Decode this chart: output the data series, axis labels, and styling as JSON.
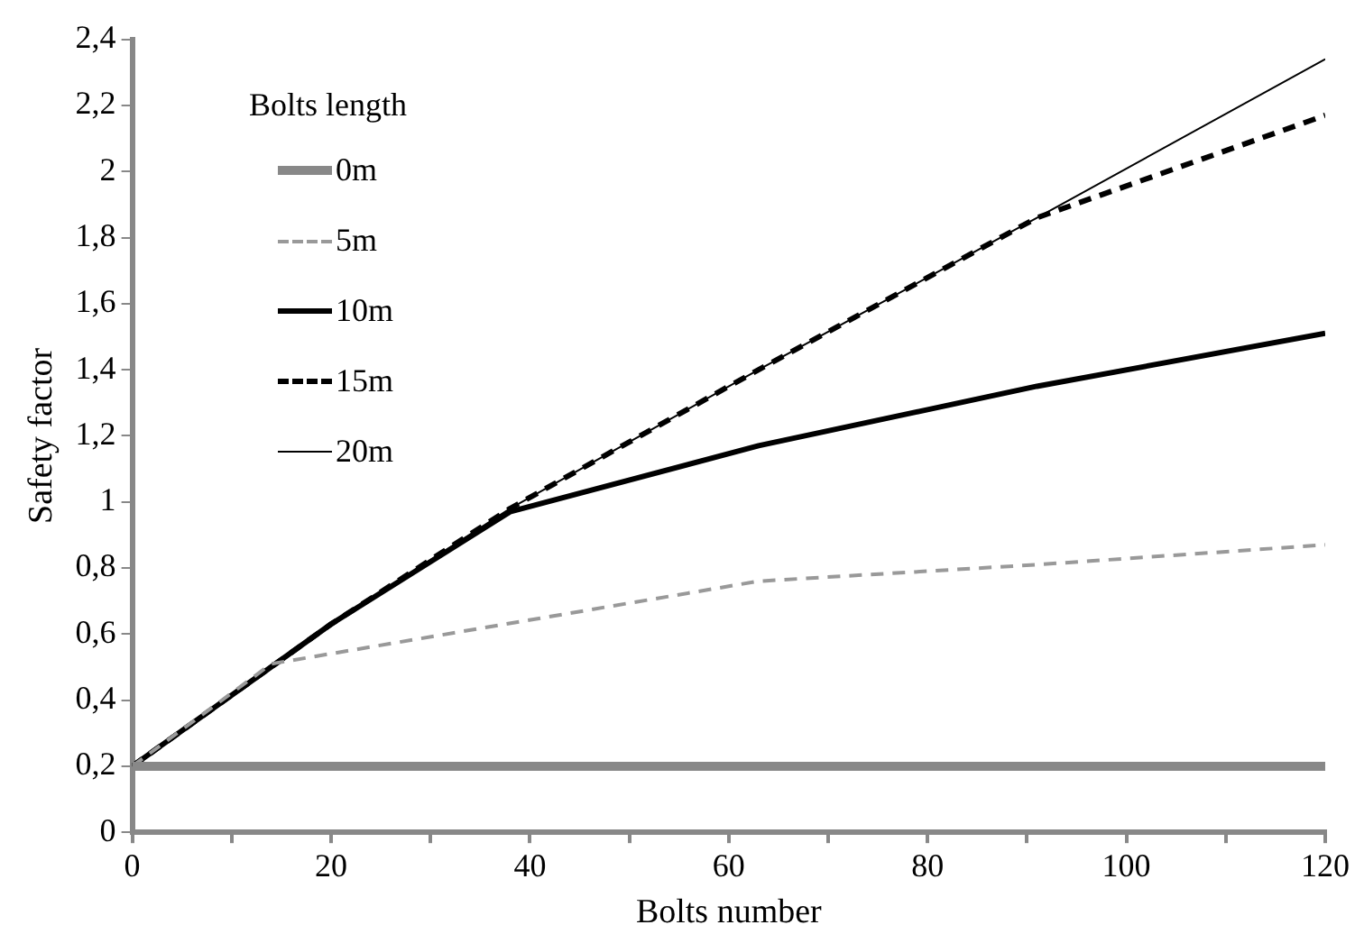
{
  "chart_data": {
    "type": "line",
    "xlabel": "Bolts number",
    "ylabel": "Safety factor",
    "legend_title": "Bolts length",
    "legend": "top left",
    "grid": false,
    "marker": "none",
    "xlim": [
      0,
      120
    ],
    "xticks": [
      0,
      {
        "value": 10,
        "label": null
      },
      20,
      {
        "value": 30,
        "label": null
      },
      40,
      {
        "value": 50,
        "label": null
      },
      60,
      {
        "value": 70,
        "label": null
      },
      80,
      {
        "value": 90,
        "label": null
      },
      100,
      {
        "value": 110,
        "label": null
      },
      120
    ],
    "ylim": [
      0,
      2.4
    ],
    "yticks": [
      0,
      {
        "value": 0.2,
        "label": "0,2"
      },
      {
        "value": 0.4,
        "label": "0,4"
      },
      {
        "value": 0.6,
        "label": "0,6"
      },
      {
        "value": 0.8,
        "label": "0,8"
      },
      1,
      {
        "value": 1.2,
        "label": "1,2"
      },
      {
        "value": 1.4,
        "label": "1,4"
      },
      {
        "value": 1.6,
        "label": "1,6"
      },
      {
        "value": 1.8,
        "label": "1,8"
      },
      2,
      {
        "value": 2.2,
        "label": "2,2"
      },
      {
        "value": 2.4,
        "label": "2,4"
      }
    ],
    "series": [
      {
        "name": "0m",
        "color": "#888888",
        "line_style": "solid",
        "x": [
          0,
          120
        ],
        "values": [
          0.2,
          0.2
        ]
      },
      {
        "name": "5m",
        "color": "#999999",
        "line_style": "dashed",
        "x": [
          0,
          14,
          63,
          91,
          120
        ],
        "values": [
          0.2,
          0.51,
          0.76,
          0.81,
          0.87
        ]
      },
      {
        "name": "10m",
        "color": "#000000",
        "line_style": "solid",
        "x": [
          0,
          20,
          38,
          63,
          91,
          120
        ],
        "values": [
          0.2,
          0.63,
          0.97,
          1.17,
          1.35,
          1.51
        ]
      },
      {
        "name": "15m",
        "color": "#000000",
        "line_style": "dashed",
        "x": [
          0,
          20,
          38,
          63,
          91,
          120
        ],
        "values": [
          0.2,
          0.63,
          0.98,
          1.4,
          1.86,
          2.17
        ]
      },
      {
        "name": "20m",
        "color": "#000000",
        "line_style": "solid",
        "x": [
          0,
          20,
          38,
          63,
          91,
          120
        ],
        "values": [
          0.2,
          0.63,
          0.98,
          1.4,
          1.86,
          2.34
        ]
      }
    ]
  }
}
